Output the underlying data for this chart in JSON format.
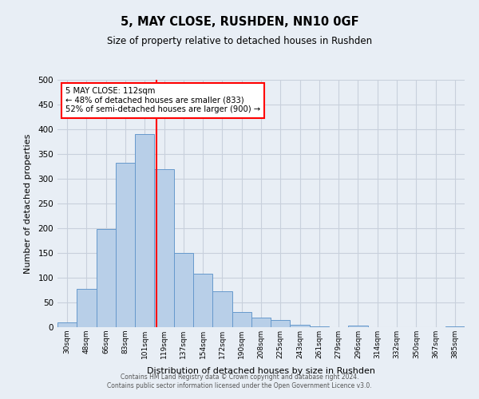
{
  "title": "5, MAY CLOSE, RUSHDEN, NN10 0GF",
  "subtitle": "Size of property relative to detached houses in Rushden",
  "xlabel": "Distribution of detached houses by size in Rushden",
  "ylabel": "Number of detached properties",
  "bin_labels": [
    "30sqm",
    "48sqm",
    "66sqm",
    "83sqm",
    "101sqm",
    "119sqm",
    "137sqm",
    "154sqm",
    "172sqm",
    "190sqm",
    "208sqm",
    "225sqm",
    "243sqm",
    "261sqm",
    "279sqm",
    "296sqm",
    "314sqm",
    "332sqm",
    "350sqm",
    "367sqm",
    "385sqm"
  ],
  "bin_values": [
    10,
    78,
    198,
    333,
    390,
    320,
    150,
    108,
    73,
    30,
    20,
    14,
    5,
    1,
    0,
    3,
    0,
    0,
    0,
    0,
    2
  ],
  "bar_color": "#b8cfe8",
  "bar_edge_color": "#6699cc",
  "vline_color": "red",
  "annotation_text": "5 MAY CLOSE: 112sqm\n← 48% of detached houses are smaller (833)\n52% of semi-detached houses are larger (900) →",
  "annotation_box_color": "white",
  "annotation_box_edge_color": "red",
  "ylim": [
    0,
    500
  ],
  "yticks": [
    0,
    50,
    100,
    150,
    200,
    250,
    300,
    350,
    400,
    450,
    500
  ],
  "grid_color": "#c8d0dc",
  "footer_text": "Contains HM Land Registry data © Crown copyright and database right 2024.\nContains public sector information licensed under the Open Government Licence v3.0.",
  "bg_color": "#e8eef5"
}
